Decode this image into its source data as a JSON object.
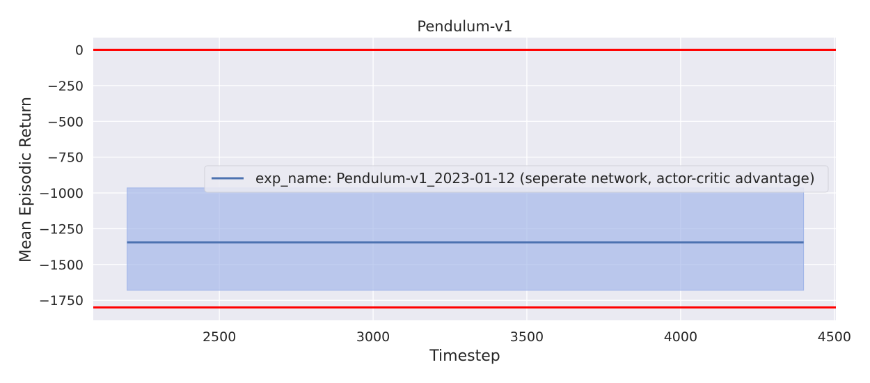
{
  "chart_data": {
    "type": "line",
    "title": "Pendulum-v1",
    "xlabel": "Timestep",
    "ylabel": "Mean Episodic Return",
    "xlim": [
      2090,
      4505
    ],
    "ylim": [
      -1890,
      85
    ],
    "grid": true,
    "legend_position": "center-right",
    "x_ticks": [
      2500,
      3000,
      3500,
      4000,
      4500
    ],
    "x_tick_labels": [
      "2500",
      "3000",
      "3500",
      "4000",
      "4500"
    ],
    "y_ticks": [
      0,
      -250,
      -500,
      -750,
      -1000,
      -1250,
      -1500,
      -1750
    ],
    "y_tick_labels": [
      "0",
      "−250",
      "−500",
      "−750",
      "−1000",
      "−1250",
      "−1500",
      "−1750"
    ],
    "series": [
      {
        "name": "exp_name: Pendulum-v1_2023-01-12 (seperate network, actor-critic advantage)",
        "color": "#4c72b0",
        "x": [
          2200,
          4400
        ],
        "y": [
          -1345,
          -1345
        ],
        "band_lower": [
          -1680,
          -1680
        ],
        "band_upper": [
          -965,
          -965
        ]
      }
    ],
    "reference_lines": [
      {
        "y": 0,
        "color": "#ff0000"
      },
      {
        "y": -1800,
        "color": "#ff0000"
      }
    ]
  },
  "colors": {
    "plot_background": "#eaeaf2",
    "grid": "#ffffff",
    "band_fill": "#9fb4e8",
    "reference": "#ff0000"
  }
}
